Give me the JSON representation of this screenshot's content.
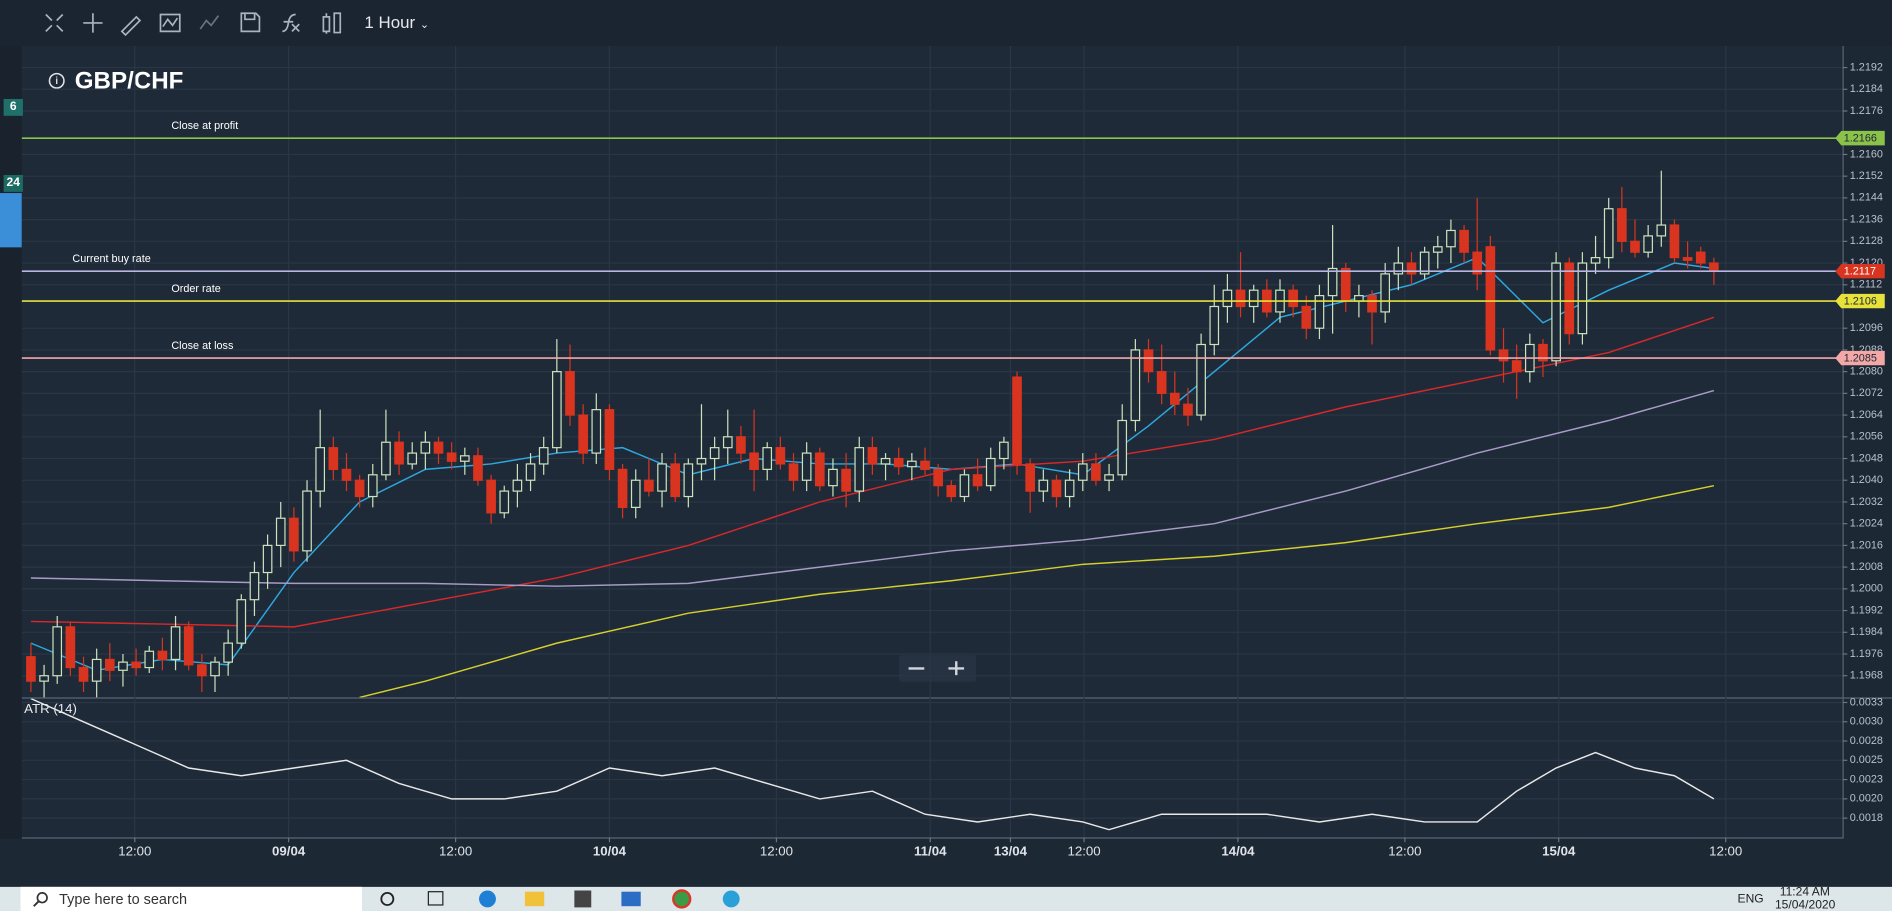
{
  "toolbar": {
    "timeframe": "1 Hour"
  },
  "sidebar": {
    "badges": [
      "6",
      "24"
    ]
  },
  "chart_data": [
    {
      "type": "candlestick",
      "title": "GBP/CHF",
      "up_color": "#c9e4bd",
      "down_color": "#d9341f",
      "grid": true,
      "xlim": [
        -0.7,
        137.6
      ],
      "ylim": [
        1.196,
        1.22
      ],
      "yticks": [
        1.1968,
        1.1976,
        1.1984,
        1.1992,
        {
          "value": 1.2,
          "label": "1.2000"
        },
        1.2008,
        1.2016,
        1.2024,
        1.2032,
        {
          "value": 1.204,
          "label": "1.2040"
        },
        1.2048,
        1.2056,
        1.2064,
        1.2072,
        {
          "value": 1.208,
          "label": "1.2080"
        },
        1.2088,
        1.2096,
        1.2112,
        {
          "value": 1.212,
          "label": "1.2120"
        },
        1.2128,
        1.2136,
        1.2144,
        1.2152,
        {
          "value": 1.216,
          "label": "1.2160"
        },
        1.2176,
        1.2184,
        1.2192
      ],
      "xticks": [
        {
          "value": 7.9,
          "label": "12:00"
        },
        {
          "value": 19.6,
          "label": "09/04"
        },
        {
          "value": 32.3,
          "label": "12:00"
        },
        {
          "value": 44,
          "label": "10/04"
        },
        {
          "value": 56.7,
          "label": "12:00"
        },
        {
          "value": 68.4,
          "label": "11/04"
        },
        {
          "value": 74.5,
          "label": "13/04"
        },
        {
          "value": 80.1,
          "label": "12:00"
        },
        {
          "value": 91.8,
          "label": "14/04"
        },
        {
          "value": 104.5,
          "label": "12:00"
        },
        {
          "value": 116.2,
          "label": "15/04"
        },
        {
          "value": 128.9,
          "label": "12:00"
        }
      ],
      "levels": [
        {
          "label": "Close at profit",
          "value": 1.2166,
          "color": "#8bc34a"
        },
        {
          "label": "Current buy rate",
          "value": 1.2117,
          "color": "#b9b4e0"
        },
        {
          "label": "Order rate",
          "value": 1.2106,
          "color": "#e6e23a"
        },
        {
          "label": "Close at loss",
          "value": 1.2085,
          "color": "#f4a7a7"
        }
      ],
      "level_badge_colors": [
        "#8bc34a",
        "#d9341f",
        "#e6e23a",
        "#f4a7a7"
      ],
      "candles": [
        [
          1.1975,
          1.198,
          1.1962,
          1.1966
        ],
        [
          1.1966,
          1.1972,
          1.1958,
          1.1968
        ],
        [
          1.1968,
          1.199,
          1.1965,
          1.1986
        ],
        [
          1.1986,
          1.1988,
          1.1968,
          1.1971
        ],
        [
          1.1971,
          1.1975,
          1.1962,
          1.1966
        ],
        [
          1.1966,
          1.1978,
          1.196,
          1.1974
        ],
        [
          1.1974,
          1.198,
          1.1966,
          1.197
        ],
        [
          1.197,
          1.1976,
          1.1964,
          1.1973
        ],
        [
          1.1973,
          1.1978,
          1.1968,
          1.1971
        ],
        [
          1.1971,
          1.1979,
          1.1969,
          1.1977
        ],
        [
          1.1977,
          1.1982,
          1.197,
          1.1974
        ],
        [
          1.1974,
          1.199,
          1.197,
          1.1986
        ],
        [
          1.1986,
          1.1988,
          1.197,
          1.1972
        ],
        [
          1.1972,
          1.1976,
          1.1962,
          1.1968
        ],
        [
          1.1968,
          1.1975,
          1.1962,
          1.1973
        ],
        [
          1.1973,
          1.1985,
          1.1968,
          1.198
        ],
        [
          1.198,
          1.1998,
          1.1978,
          1.1996
        ],
        [
          1.1996,
          1.201,
          1.199,
          1.2006
        ],
        [
          1.2006,
          1.202,
          1.2,
          1.2016
        ],
        [
          1.2016,
          1.2032,
          1.2008,
          1.2026
        ],
        [
          1.2026,
          1.203,
          1.201,
          1.2014
        ],
        [
          1.2014,
          1.204,
          1.201,
          1.2036
        ],
        [
          1.2036,
          1.2066,
          1.203,
          1.2052
        ],
        [
          1.2052,
          1.2056,
          1.204,
          1.2044
        ],
        [
          1.2044,
          1.205,
          1.2036,
          1.204
        ],
        [
          1.204,
          1.2042,
          1.203,
          1.2034
        ],
        [
          1.2034,
          1.2046,
          1.203,
          1.2042
        ],
        [
          1.2042,
          1.2066,
          1.204,
          1.2054
        ],
        [
          1.2054,
          1.2058,
          1.2042,
          1.2046
        ],
        [
          1.2046,
          1.2054,
          1.2044,
          1.205
        ],
        [
          1.205,
          1.2058,
          1.2044,
          1.2054
        ],
        [
          1.2054,
          1.2056,
          1.2046,
          1.205
        ],
        [
          1.205,
          1.2054,
          1.2044,
          1.2047
        ],
        [
          1.2047,
          1.2052,
          1.2042,
          1.2049
        ],
        [
          1.2049,
          1.2052,
          1.2038,
          1.204
        ],
        [
          1.204,
          1.2042,
          1.2024,
          1.2028
        ],
        [
          1.2028,
          1.2038,
          1.2026,
          1.2036
        ],
        [
          1.2036,
          1.2046,
          1.203,
          1.204
        ],
        [
          1.204,
          1.205,
          1.2036,
          1.2046
        ],
        [
          1.2046,
          1.2056,
          1.2042,
          1.2052
        ],
        [
          1.2052,
          1.2092,
          1.205,
          1.208
        ],
        [
          1.208,
          1.209,
          1.206,
          1.2064
        ],
        [
          1.2064,
          1.2068,
          1.2046,
          1.205
        ],
        [
          1.205,
          1.2072,
          1.2046,
          1.2066
        ],
        [
          1.2066,
          1.2068,
          1.204,
          1.2044
        ],
        [
          1.2044,
          1.2046,
          1.2026,
          1.203
        ],
        [
          1.203,
          1.2044,
          1.2026,
          1.204
        ],
        [
          1.204,
          1.2048,
          1.2034,
          1.2036
        ],
        [
          1.2036,
          1.205,
          1.203,
          1.2046
        ],
        [
          1.2046,
          1.205,
          1.2032,
          1.2034
        ],
        [
          1.2034,
          1.2048,
          1.203,
          1.2046
        ],
        [
          1.2046,
          1.2068,
          1.204,
          1.2048
        ],
        [
          1.2048,
          1.2056,
          1.204,
          1.2052
        ],
        [
          1.2052,
          1.2066,
          1.2046,
          1.2056
        ],
        [
          1.2056,
          1.206,
          1.2046,
          1.205
        ],
        [
          1.205,
          1.2066,
          1.2036,
          1.2044
        ],
        [
          1.2044,
          1.2054,
          1.204,
          1.2052
        ],
        [
          1.2052,
          1.2056,
          1.2044,
          1.2046
        ],
        [
          1.2046,
          1.205,
          1.2036,
          1.204
        ],
        [
          1.204,
          1.2054,
          1.2036,
          1.205
        ],
        [
          1.205,
          1.2052,
          1.2036,
          1.2038
        ],
        [
          1.2038,
          1.2048,
          1.2034,
          1.2044
        ],
        [
          1.2044,
          1.205,
          1.203,
          1.2036
        ],
        [
          1.2036,
          1.2056,
          1.2032,
          1.2052
        ],
        [
          1.2052,
          1.2056,
          1.2042,
          1.2046
        ],
        [
          1.2046,
          1.205,
          1.204,
          1.2048
        ],
        [
          1.2048,
          1.2052,
          1.2042,
          1.2045
        ],
        [
          1.2045,
          1.205,
          1.204,
          1.2047
        ],
        [
          1.2047,
          1.2052,
          1.2042,
          1.2044
        ],
        [
          1.2044,
          1.2046,
          1.2034,
          1.2038
        ],
        [
          1.2038,
          1.204,
          1.2032,
          1.2034
        ],
        [
          1.2034,
          1.2044,
          1.2032,
          1.2042
        ],
        [
          1.2042,
          1.2048,
          1.2036,
          1.2038
        ],
        [
          1.2038,
          1.2052,
          1.2036,
          1.2048
        ],
        [
          1.2048,
          1.2056,
          1.2044,
          1.2054
        ],
        [
          1.2078,
          1.208,
          1.2042,
          1.2046
        ],
        [
          1.2046,
          1.2048,
          1.2028,
          1.2036
        ],
        [
          1.2036,
          1.2044,
          1.2032,
          1.204
        ],
        [
          1.204,
          1.2042,
          1.203,
          1.2034
        ],
        [
          1.2034,
          1.2044,
          1.203,
          1.204
        ],
        [
          1.204,
          1.205,
          1.2036,
          1.2046
        ],
        [
          1.2046,
          1.205,
          1.2038,
          1.204
        ],
        [
          1.204,
          1.2046,
          1.2036,
          1.2042
        ],
        [
          1.2042,
          1.2068,
          1.204,
          1.2062
        ],
        [
          1.2062,
          1.2092,
          1.2058,
          1.2088
        ],
        [
          1.2088,
          1.2092,
          1.2076,
          1.208
        ],
        [
          1.208,
          1.209,
          1.2068,
          1.2072
        ],
        [
          1.2072,
          1.208,
          1.2064,
          1.2068
        ],
        [
          1.2068,
          1.2074,
          1.206,
          1.2064
        ],
        [
          1.2064,
          1.2094,
          1.2062,
          1.209
        ],
        [
          1.209,
          1.2112,
          1.2086,
          1.2104
        ],
        [
          1.2104,
          1.2116,
          1.2098,
          1.211
        ],
        [
          1.211,
          1.2124,
          1.21,
          1.2104
        ],
        [
          1.2104,
          1.2112,
          1.2098,
          1.211
        ],
        [
          1.211,
          1.2114,
          1.21,
          1.2102
        ],
        [
          1.2102,
          1.2114,
          1.2098,
          1.211
        ],
        [
          1.211,
          1.2112,
          1.21,
          1.2104
        ],
        [
          1.2104,
          1.2108,
          1.2092,
          1.2096
        ],
        [
          1.2096,
          1.2112,
          1.2092,
          1.2108
        ],
        [
          1.2108,
          1.2134,
          1.2094,
          1.2118
        ],
        [
          1.2118,
          1.212,
          1.2102,
          1.2106
        ],
        [
          1.2106,
          1.2112,
          1.21,
          1.2108
        ],
        [
          1.2108,
          1.211,
          1.209,
          1.2102
        ],
        [
          1.2102,
          1.212,
          1.2098,
          1.2116
        ],
        [
          1.2116,
          1.2126,
          1.211,
          1.212
        ],
        [
          1.212,
          1.2124,
          1.2112,
          1.2116
        ],
        [
          1.2116,
          1.2126,
          1.2114,
          1.2124
        ],
        [
          1.2124,
          1.213,
          1.2118,
          1.2126
        ],
        [
          1.2126,
          1.2136,
          1.212,
          1.2132
        ],
        [
          1.2132,
          1.2134,
          1.212,
          1.2124
        ],
        [
          1.2124,
          1.2144,
          1.211,
          1.2116
        ],
        [
          1.2126,
          1.213,
          1.2086,
          1.2088
        ],
        [
          1.2088,
          1.2096,
          1.2076,
          1.2084
        ],
        [
          1.2084,
          1.209,
          1.207,
          1.208
        ],
        [
          1.208,
          1.2094,
          1.2076,
          1.209
        ],
        [
          1.209,
          1.2092,
          1.2078,
          1.2084
        ],
        [
          1.2084,
          1.2124,
          1.2082,
          1.212
        ],
        [
          1.212,
          1.2122,
          1.209,
          1.2094
        ],
        [
          1.2094,
          1.2124,
          1.209,
          1.212
        ],
        [
          1.212,
          1.213,
          1.2116,
          1.2122
        ],
        [
          1.2122,
          1.2144,
          1.2118,
          1.214
        ],
        [
          1.214,
          1.2148,
          1.2124,
          1.2128
        ],
        [
          1.2128,
          1.2136,
          1.2122,
          1.2124
        ],
        [
          1.2124,
          1.2134,
          1.2122,
          1.213
        ],
        [
          1.213,
          1.2154,
          1.2126,
          1.2134
        ],
        [
          1.2134,
          1.2136,
          1.212,
          1.2122
        ],
        [
          1.2122,
          1.2128,
          1.2118,
          1.2121
        ],
        [
          1.2124,
          1.2126,
          1.2118,
          1.212
        ],
        [
          1.212,
          1.2122,
          1.2112,
          1.2117
        ]
      ],
      "series": [
        {
          "color": "#2fa8e0",
          "x": [
            0,
            5,
            10,
            15,
            20,
            25,
            30,
            35,
            40,
            45,
            50,
            55,
            60,
            65,
            70,
            75,
            80,
            85,
            90,
            95,
            100,
            105,
            110,
            115,
            120,
            125,
            128
          ],
          "values": [
            1.198,
            1.197,
            1.1974,
            1.1972,
            1.2006,
            1.2032,
            1.2044,
            1.2046,
            1.205,
            1.2052,
            1.2042,
            1.2048,
            1.2046,
            1.2046,
            1.2044,
            1.2046,
            1.2042,
            1.206,
            1.208,
            1.21,
            1.2106,
            1.2112,
            1.2122,
            1.2098,
            1.211,
            1.212,
            1.2118
          ]
        },
        {
          "color": "#d8282a",
          "x": [
            0,
            10,
            20,
            30,
            40,
            50,
            60,
            70,
            80,
            90,
            100,
            110,
            120,
            128
          ],
          "values": [
            1.1988,
            1.1987,
            1.1986,
            1.1995,
            1.2004,
            1.2016,
            1.2032,
            1.2044,
            1.2047,
            1.2055,
            1.2067,
            1.2077,
            1.2087,
            1.21
          ]
        },
        {
          "color": "#a99bc8",
          "x": [
            0,
            10,
            20,
            30,
            40,
            50,
            60,
            70,
            80,
            90,
            100,
            110,
            120,
            128
          ],
          "values": [
            1.2004,
            1.2003,
            1.2002,
            1.2002,
            1.2001,
            1.2002,
            1.2008,
            1.2014,
            1.2018,
            1.2024,
            1.2036,
            1.205,
            1.2062,
            1.2073
          ]
        },
        {
          "color": "#d6cf2c",
          "x": [
            25,
            30,
            40,
            50,
            60,
            70,
            80,
            90,
            100,
            110,
            120,
            128
          ],
          "values": [
            1.196,
            1.1966,
            1.198,
            1.1991,
            1.1998,
            1.2003,
            1.2009,
            1.2012,
            1.2017,
            1.2024,
            1.203,
            1.2038
          ]
        }
      ]
    },
    {
      "type": "line",
      "title": "ATR (14)",
      "grid": true,
      "xlim": [
        -0.7,
        137.6
      ],
      "ylim": [
        0.0015,
        0.0033
      ],
      "yticks": [
        {
          "value": 0.00325,
          "label": "0.0033"
        },
        {
          "value": 0.003,
          "label": "0.0030"
        },
        {
          "value": 0.00275,
          "label": "0.0028"
        },
        {
          "value": 0.0025,
          "label": "0.0025"
        },
        {
          "value": 0.00225,
          "label": "0.0023"
        },
        {
          "value": 0.002,
          "label": "0.0020"
        },
        {
          "value": 0.00175,
          "label": "0.0018"
        }
      ],
      "series": [
        {
          "color": "#e8e8e8",
          "x": [
            0,
            4,
            8,
            12,
            16,
            20,
            24,
            28,
            32,
            36,
            40,
            44,
            48,
            52,
            56,
            60,
            64,
            68,
            72,
            76,
            80,
            82,
            86,
            90,
            94,
            98,
            102,
            106,
            110,
            113,
            116,
            119,
            122,
            125,
            128
          ],
          "values": [
            0.0033,
            0.003,
            0.0027,
            0.0024,
            0.0023,
            0.0024,
            0.0025,
            0.0022,
            0.002,
            0.002,
            0.0021,
            0.0024,
            0.0023,
            0.0024,
            0.0022,
            0.002,
            0.0021,
            0.0018,
            0.0017,
            0.0018,
            0.0017,
            0.0016,
            0.0018,
            0.0018,
            0.0018,
            0.0017,
            0.0018,
            0.0017,
            0.0017,
            0.0021,
            0.0024,
            0.0026,
            0.0024,
            0.0023,
            0.002
          ]
        }
      ]
    }
  ],
  "taskbar": {
    "search": "Type here to search",
    "language": "ENG",
    "time": "11:24 AM",
    "date": "15/04/2020"
  }
}
